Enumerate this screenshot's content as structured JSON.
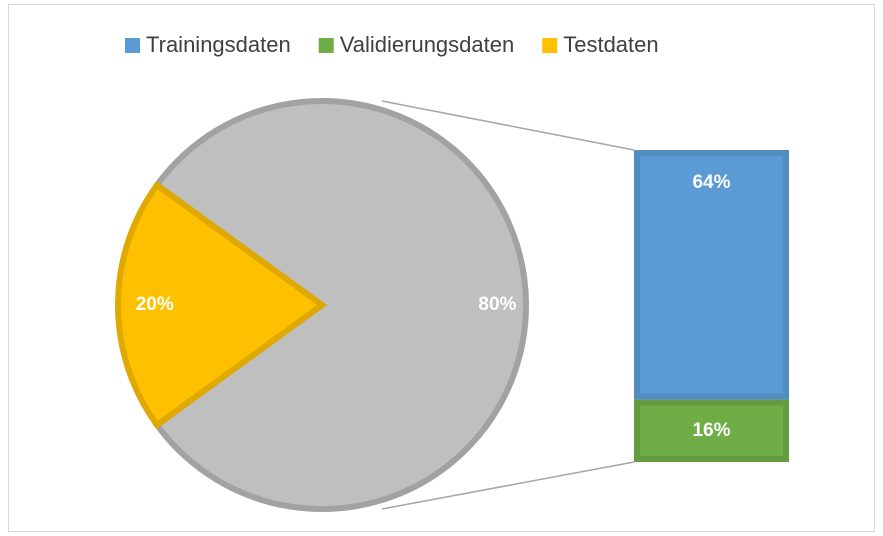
{
  "chart_data": {
    "type": "bar-of-pie",
    "categories": [
      "Trainingsdaten",
      "Validierungsdaten",
      "Testdaten"
    ],
    "values": [
      64,
      16,
      20
    ],
    "value_labels": [
      "64%",
      "16%",
      "20%"
    ],
    "colors": [
      "#5b9bd5",
      "#70ad47",
      "#ffc000"
    ],
    "other_value": 80,
    "other_label": "80%",
    "other_color": "#bfbfbf",
    "legend": "top"
  }
}
